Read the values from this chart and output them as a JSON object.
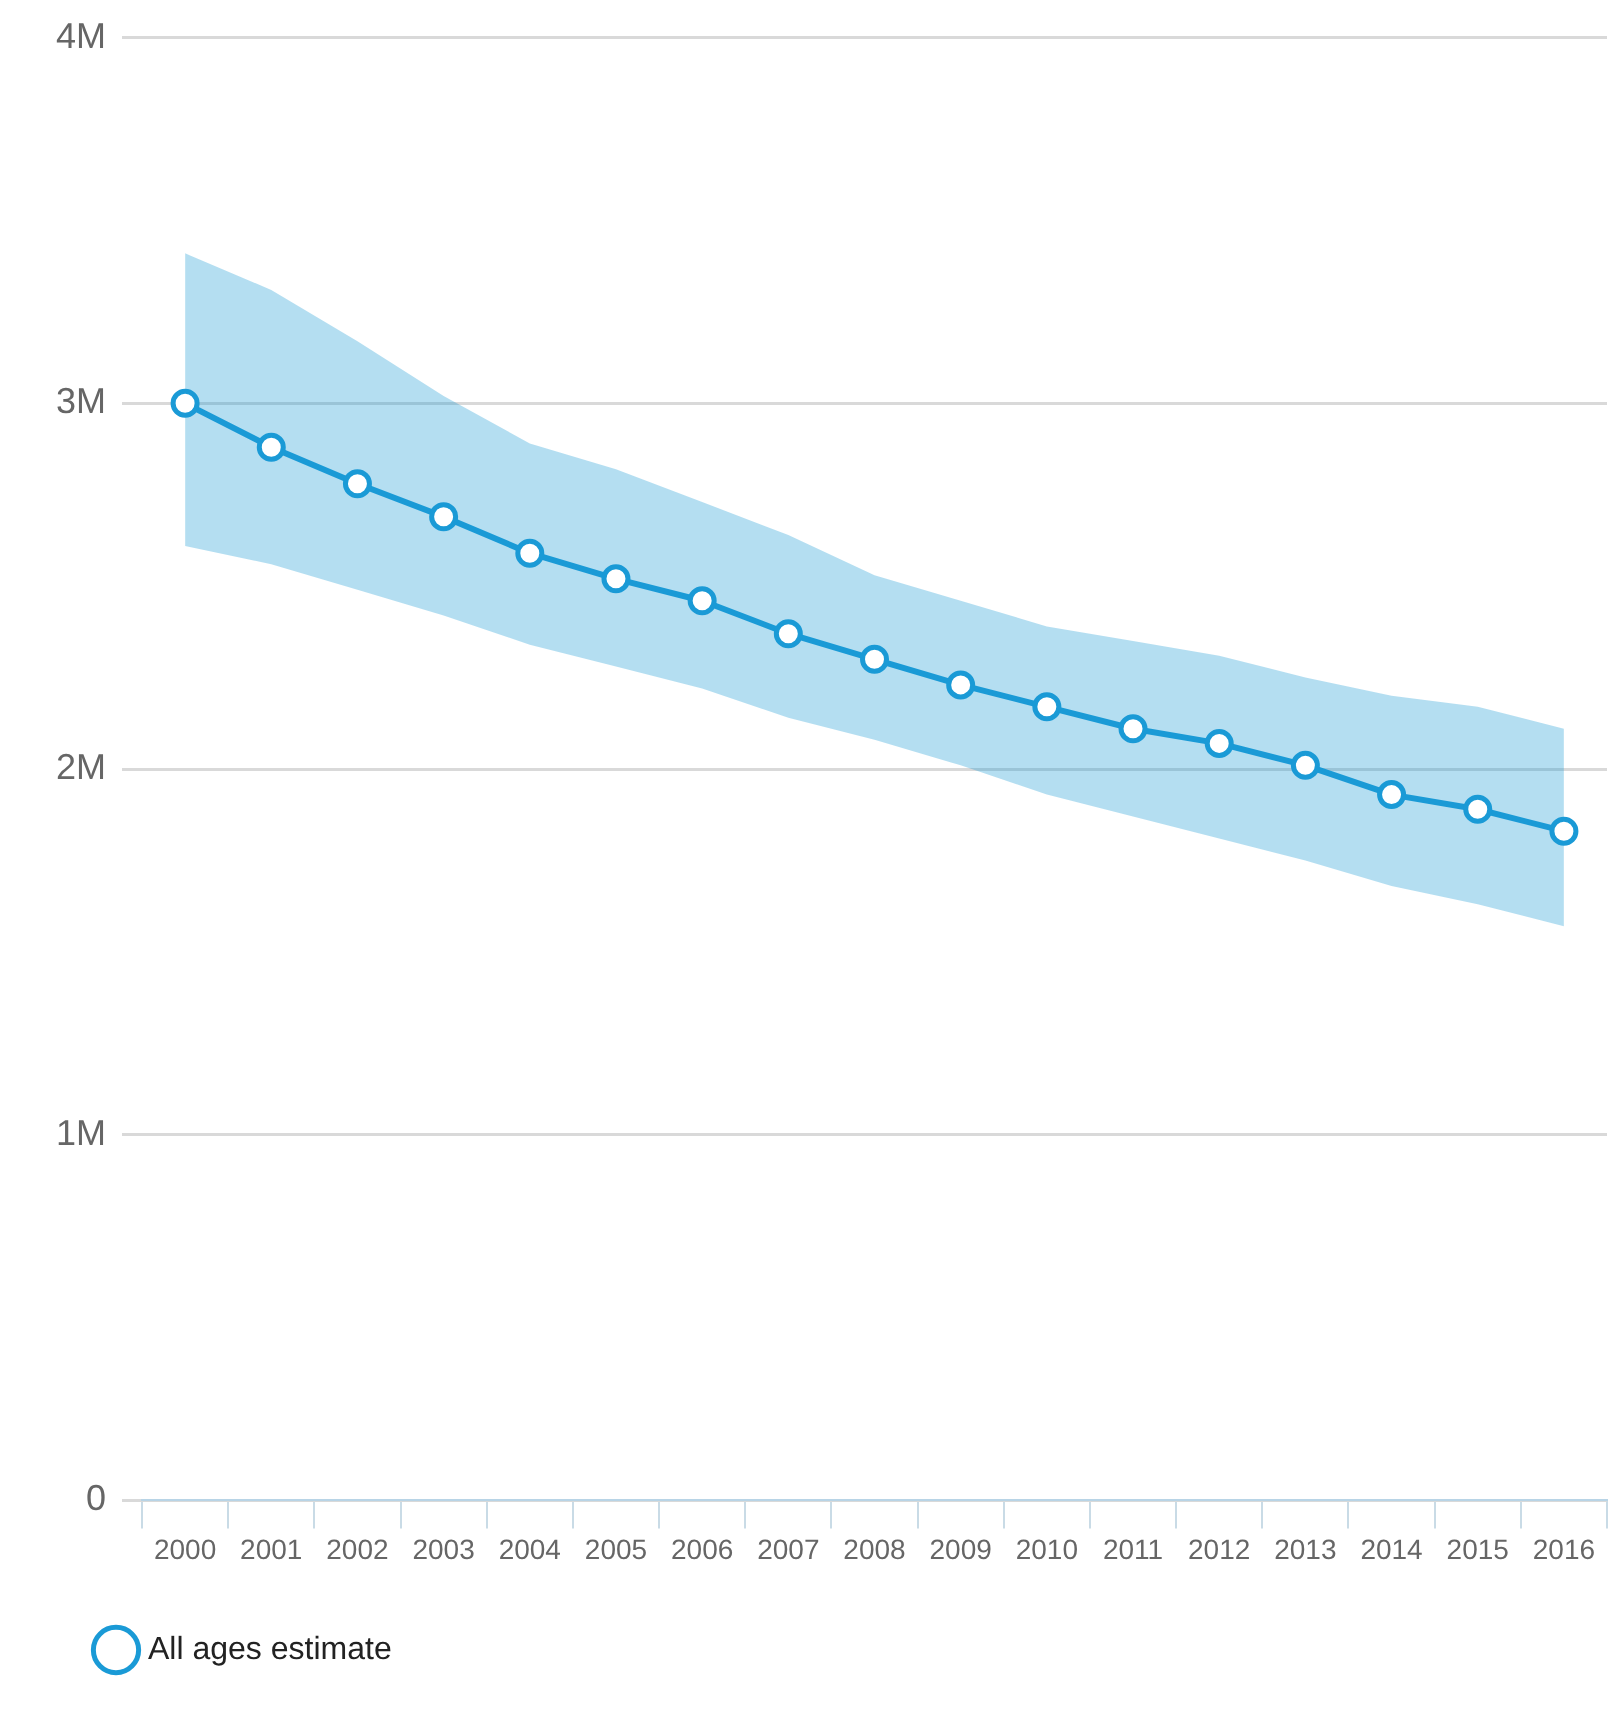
{
  "chart_data": {
    "type": "line",
    "categories": [
      "2000",
      "2001",
      "2002",
      "2003",
      "2004",
      "2005",
      "2006",
      "2007",
      "2008",
      "2009",
      "2010",
      "2011",
      "2012",
      "2013",
      "2014",
      "2015",
      "2016"
    ],
    "series": [
      {
        "name": "All ages estimate",
        "color": "#1a9ad6",
        "values": [
          3.0,
          2.88,
          2.78,
          2.69,
          2.59,
          2.52,
          2.46,
          2.37,
          2.3,
          2.23,
          2.17,
          2.11,
          2.07,
          2.01,
          1.93,
          1.89,
          1.83
        ],
        "lower": [
          2.61,
          2.56,
          2.49,
          2.42,
          2.34,
          2.28,
          2.22,
          2.14,
          2.08,
          2.01,
          1.93,
          1.87,
          1.81,
          1.75,
          1.68,
          1.63,
          1.57
        ],
        "upper": [
          3.41,
          3.31,
          3.17,
          3.02,
          2.89,
          2.82,
          2.73,
          2.64,
          2.53,
          2.46,
          2.39,
          2.35,
          2.31,
          2.25,
          2.2,
          2.17,
          2.11
        ]
      }
    ],
    "ylim": [
      0,
      4
    ],
    "yticks": [
      {
        "value": 0,
        "label": "0"
      },
      {
        "value": 1,
        "label": "1M"
      },
      {
        "value": 2,
        "label": "2M"
      },
      {
        "value": 3,
        "label": "3M"
      },
      {
        "value": 4,
        "label": "4M"
      }
    ],
    "grid": "y",
    "legend": "bottom left",
    "marker": "circle",
    "line_style": "solid"
  }
}
